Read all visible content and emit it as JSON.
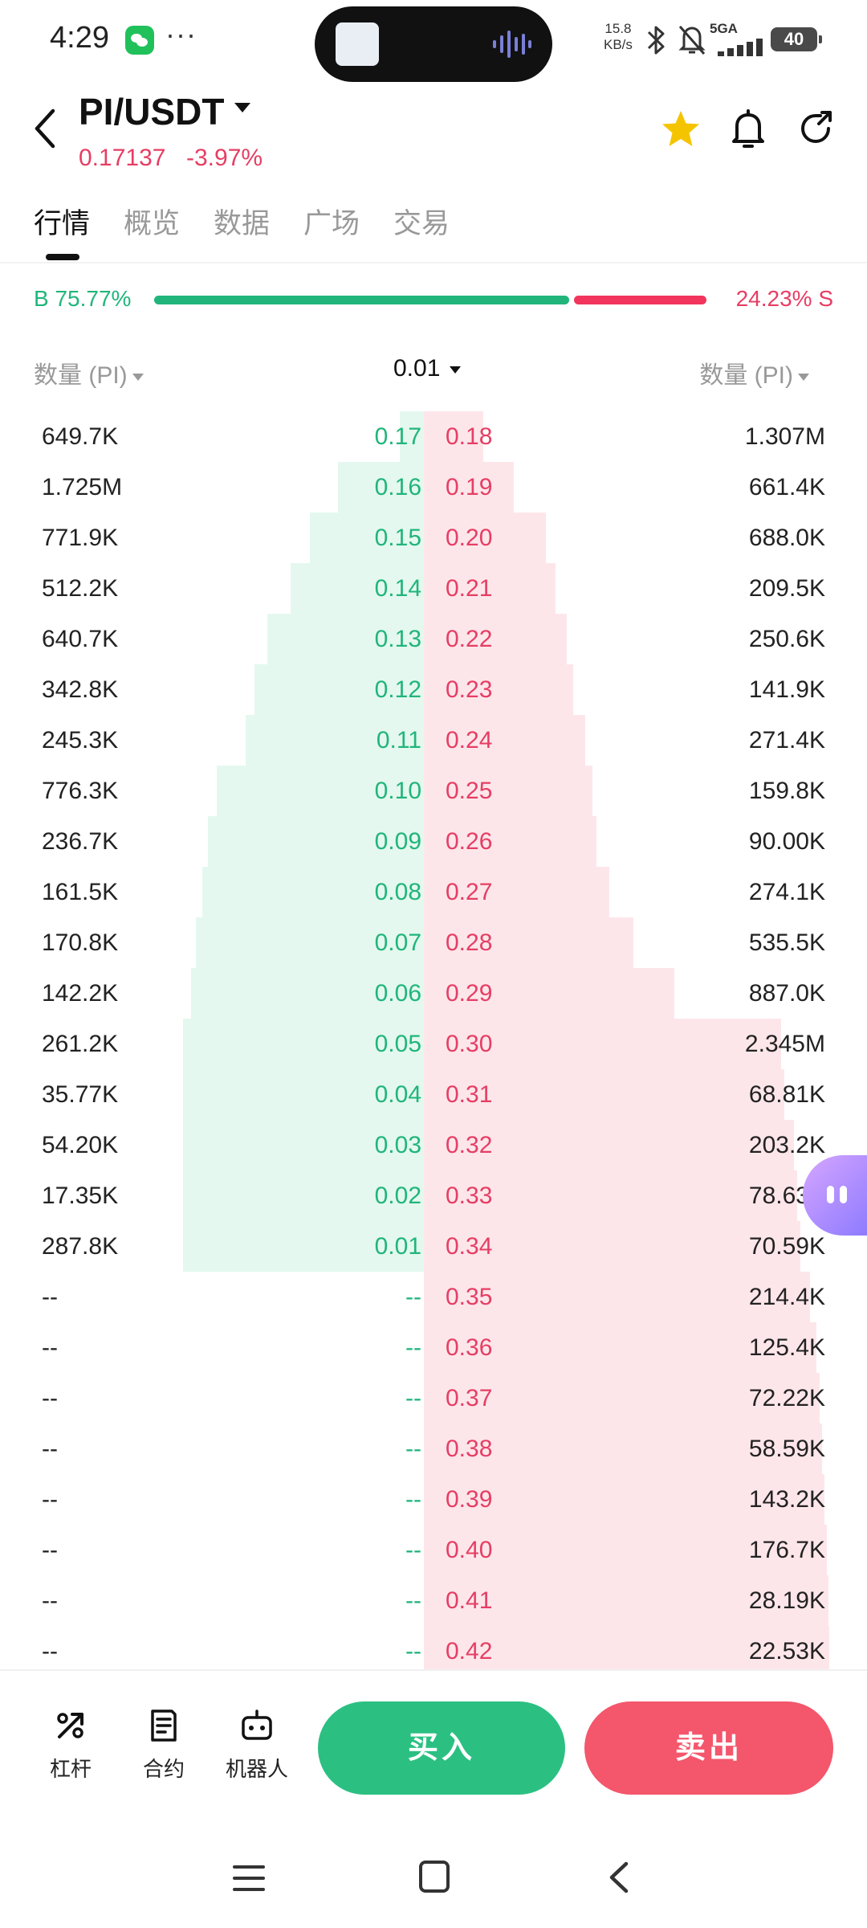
{
  "status_bar": {
    "time": "4:29",
    "net_speed_value": "15.8",
    "net_speed_unit": "KB/s",
    "network": "5GA",
    "battery": "40"
  },
  "header": {
    "pair": "PI/USDT",
    "last_price": "0.17137",
    "change_pct": "-3.97%"
  },
  "tabs": [
    "行情",
    "概览",
    "数据",
    "广场",
    "交易"
  ],
  "active_tab": 0,
  "ratio": {
    "buy_label": "B 75.77%",
    "sell_label": "24.23% S",
    "buy_fraction": 0.7577
  },
  "depth_header": {
    "left_label": "数量 (PI)",
    "precision": "0.01",
    "right_label": "数量 (PI)"
  },
  "order_book": [
    {
      "bid_qty": "649.7K",
      "bid_price": "0.17",
      "ask_price": "0.18",
      "ask_qty": "1.307M",
      "bid_depth": 0.099,
      "ask_depth": 0.147
    },
    {
      "bid_qty": "1.725M",
      "bid_price": "0.16",
      "ask_price": "0.19",
      "ask_qty": "661.4K",
      "bid_depth": 0.357,
      "ask_depth": 0.222
    },
    {
      "bid_qty": "771.9K",
      "bid_price": "0.15",
      "ask_price": "0.20",
      "ask_qty": "688.0K",
      "bid_depth": 0.474,
      "ask_depth": 0.3
    },
    {
      "bid_qty": "512.2K",
      "bid_price": "0.14",
      "ask_price": "0.21",
      "ask_qty": "209.5K",
      "bid_depth": 0.552,
      "ask_depth": 0.324
    },
    {
      "bid_qty": "640.7K",
      "bid_price": "0.13",
      "ask_price": "0.22",
      "ask_qty": "250.6K",
      "bid_depth": 0.651,
      "ask_depth": 0.352
    },
    {
      "bid_qty": "342.8K",
      "bid_price": "0.12",
      "ask_price": "0.23",
      "ask_qty": "141.9K",
      "bid_depth": 0.703,
      "ask_depth": 0.368
    },
    {
      "bid_qty": "245.3K",
      "bid_price": "0.11",
      "ask_price": "0.24",
      "ask_qty": "271.4K",
      "bid_depth": 0.741,
      "ask_depth": 0.398
    },
    {
      "bid_qty": "776.3K",
      "bid_price": "0.10",
      "ask_price": "0.25",
      "ask_qty": "159.8K",
      "bid_depth": 0.859,
      "ask_depth": 0.416
    },
    {
      "bid_qty": "236.7K",
      "bid_price": "0.09",
      "ask_price": "0.26",
      "ask_qty": "90.00K",
      "bid_depth": 0.896,
      "ask_depth": 0.426
    },
    {
      "bid_qty": "161.5K",
      "bid_price": "0.08",
      "ask_price": "0.27",
      "ask_qty": "274.1K",
      "bid_depth": 0.92,
      "ask_depth": 0.457
    },
    {
      "bid_qty": "170.8K",
      "bid_price": "0.07",
      "ask_price": "0.28",
      "ask_qty": "535.5K",
      "bid_depth": 0.946,
      "ask_depth": 0.517
    },
    {
      "bid_qty": "142.2K",
      "bid_price": "0.06",
      "ask_price": "0.29",
      "ask_qty": "887.0K",
      "bid_depth": 0.968,
      "ask_depth": 0.617
    },
    {
      "bid_qty": "261.2K",
      "bid_price": "0.05",
      "ask_price": "0.30",
      "ask_qty": "2.345M",
      "bid_depth": 1.0,
      "ask_depth": 0.881
    },
    {
      "bid_qty": "35.77K",
      "bid_price": "0.04",
      "ask_price": "0.31",
      "ask_qty": "68.81K",
      "bid_depth": 1.0,
      "ask_depth": 0.889
    },
    {
      "bid_qty": "54.20K",
      "bid_price": "0.03",
      "ask_price": "0.32",
      "ask_qty": "203.2K",
      "bid_depth": 1.0,
      "ask_depth": 0.912
    },
    {
      "bid_qty": "17.35K",
      "bid_price": "0.02",
      "ask_price": "0.33",
      "ask_qty": "78.63K",
      "bid_depth": 1.0,
      "ask_depth": 0.921
    },
    {
      "bid_qty": "287.8K",
      "bid_price": "0.01",
      "ask_price": "0.34",
      "ask_qty": "70.59K",
      "bid_depth": 1.0,
      "ask_depth": 0.929
    },
    {
      "bid_qty": "--",
      "bid_price": "--",
      "ask_price": "0.35",
      "ask_qty": "214.4K",
      "bid_depth": 0,
      "ask_depth": 0.953
    },
    {
      "bid_qty": "--",
      "bid_price": "--",
      "ask_price": "0.36",
      "ask_qty": "125.4K",
      "bid_depth": 0,
      "ask_depth": 0.968
    },
    {
      "bid_qty": "--",
      "bid_price": "--",
      "ask_price": "0.37",
      "ask_qty": "72.22K",
      "bid_depth": 0,
      "ask_depth": 0.976
    },
    {
      "bid_qty": "--",
      "bid_price": "--",
      "ask_price": "0.38",
      "ask_qty": "58.59K",
      "bid_depth": 0,
      "ask_depth": 0.982
    },
    {
      "bid_qty": "--",
      "bid_price": "--",
      "ask_price": "0.39",
      "ask_qty": "143.2K",
      "bid_depth": 0,
      "ask_depth": 0.989
    },
    {
      "bid_qty": "--",
      "bid_price": "--",
      "ask_price": "0.40",
      "ask_qty": "176.7K",
      "bid_depth": 0,
      "ask_depth": 0.995
    },
    {
      "bid_qty": "--",
      "bid_price": "--",
      "ask_price": "0.41",
      "ask_qty": "28.19K",
      "bid_depth": 0,
      "ask_depth": 0.998
    },
    {
      "bid_qty": "--",
      "bid_price": "--",
      "ask_price": "0.42",
      "ask_qty": "22.53K",
      "bid_depth": 0,
      "ask_depth": 1.0
    }
  ],
  "bottom_bar": {
    "tools": [
      {
        "label": "杠杆",
        "icon": "leverage-icon"
      },
      {
        "label": "合约",
        "icon": "contract-icon"
      },
      {
        "label": "机器人",
        "icon": "robot-icon"
      }
    ],
    "buy_label": "买入",
    "sell_label": "卖出"
  },
  "colors": {
    "buy": "#21b57b",
    "sell": "#e63e64",
    "buy_bg": "#e4f8ef",
    "sell_bg": "#fde6ea",
    "star": "#f5c400"
  }
}
